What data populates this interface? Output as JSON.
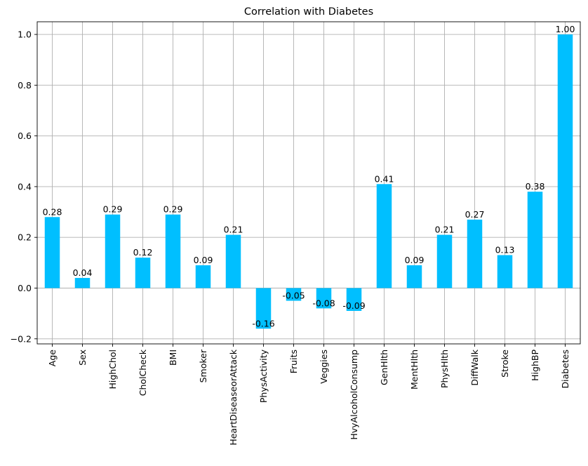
{
  "chart_data": {
    "type": "bar",
    "title": "Correlation with Diabetes",
    "xlabel": "",
    "ylabel": "",
    "categories": [
      "Age",
      "Sex",
      "HighChol",
      "CholCheck",
      "BMI",
      "Smoker",
      "HeartDiseaseorAttack",
      "PhysActivity",
      "Fruits",
      "Veggies",
      "HvyAlcoholConsump",
      "GenHlth",
      "MentHlth",
      "PhysHlth",
      "DiffWalk",
      "Stroke",
      "HighBP",
      "Diabetes"
    ],
    "values": [
      0.28,
      0.04,
      0.29,
      0.12,
      0.29,
      0.09,
      0.21,
      -0.16,
      -0.05,
      -0.08,
      -0.09,
      0.41,
      0.09,
      0.21,
      0.27,
      0.13,
      0.38,
      1.0
    ],
    "data_labels": [
      "0.28",
      "0.04",
      "0.29",
      "0.12",
      "0.29",
      "0.09",
      "0.21",
      "-0.16",
      "-0.05",
      "-0.08",
      "-0.09",
      "0.41",
      "0.09",
      "0.21",
      "0.27",
      "0.13",
      "0.38",
      "1.00"
    ],
    "ylim": [
      -0.22,
      1.05
    ],
    "yticks": [
      -0.2,
      0.0,
      0.2,
      0.4,
      0.6,
      0.8,
      1.0
    ],
    "ytick_labels": [
      "−0.2",
      "0.0",
      "0.2",
      "0.4",
      "0.6",
      "0.8",
      "1.0"
    ],
    "grid": true,
    "bar_color": "#00bfff"
  }
}
